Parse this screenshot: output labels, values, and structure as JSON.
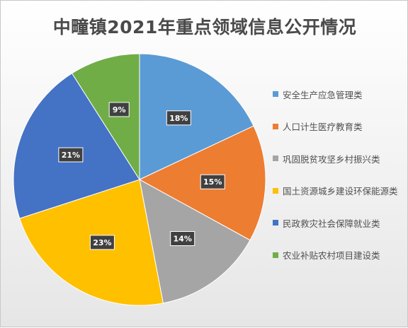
{
  "chart_data": {
    "type": "pie",
    "title": "中疃镇2021年重点领域信息公开情况",
    "legend_position": "right",
    "data_label_format": "percent",
    "slices": [
      {
        "label": "安全生产应急管理类",
        "value": 18,
        "display": "18%",
        "color": "#5B9BD5"
      },
      {
        "label": "人口计生医疗教育类",
        "value": 15,
        "display": "15%",
        "color": "#ED7D31"
      },
      {
        "label": "巩固脱贫攻坚乡村振兴类",
        "value": 14,
        "display": "14%",
        "color": "#A5A5A5"
      },
      {
        "label": "国土资源城乡建设环保能源类",
        "value": 23,
        "display": "23%",
        "color": "#FFC000"
      },
      {
        "label": "民政救灾社会保障就业类",
        "value": 21,
        "display": "21%",
        "color": "#4472C4"
      },
      {
        "label": "农业补贴农村项目建设类",
        "value": 9,
        "display": "9%",
        "color": "#70AD47"
      }
    ]
  }
}
